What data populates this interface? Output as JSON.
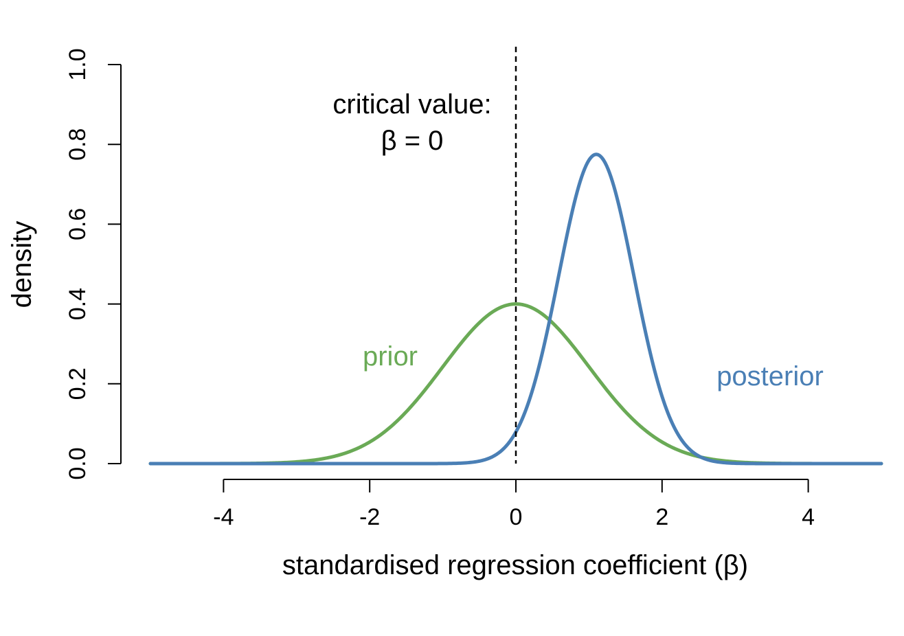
{
  "chart_data": {
    "type": "line",
    "xlabel": "standardised regression coefficient (β)",
    "ylabel": "density",
    "xlim": [
      -5,
      5
    ],
    "ylim": [
      0,
      1.0
    ],
    "x_ticks": [
      -4,
      -2,
      0,
      2,
      4
    ],
    "x_tick_labels": [
      "-4",
      "-2",
      "0",
      "2",
      "4"
    ],
    "y_ticks": [
      0,
      0.2,
      0.4,
      0.6,
      0.8,
      1.0
    ],
    "y_tick_labels": [
      "0.0",
      "0.2",
      "0.4",
      "0.6",
      "0.8",
      "1.0"
    ],
    "grid": false,
    "legend": "none",
    "critical_value": 0,
    "annotation": {
      "line1": "critical value:",
      "line2": "β = 0"
    },
    "series": [
      {
        "name": "prior",
        "color": "#6aaa56",
        "distribution": "normal",
        "mean": 0,
        "sd": 1,
        "peak": 0.4
      },
      {
        "name": "posterior",
        "color": "#4a7fb5",
        "distribution": "normal",
        "mean": 1.1,
        "sd": 0.515,
        "peak": 0.775
      }
    ]
  }
}
